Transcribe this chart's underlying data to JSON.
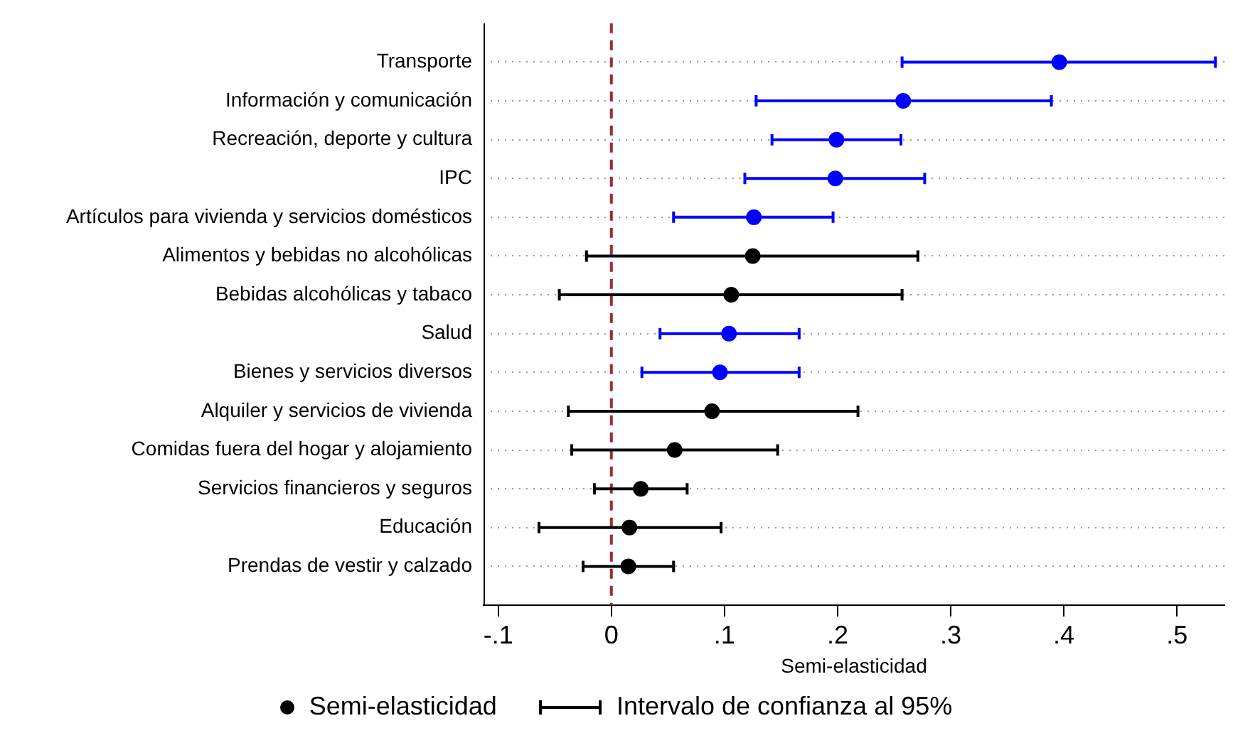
{
  "chart_data": {
    "type": "scatter",
    "orientation": "horizontal",
    "xlabel": "Semi-elasticidad",
    "categories": [
      "Transporte",
      "Información y comunicación",
      "Recreación, deporte y cultura",
      "IPC",
      "Artículos para vivienda y servicios domésticos",
      "Alimentos y bebidas no alcohólicas",
      "Bebidas alcohólicas y tabaco",
      "Salud",
      "Bienes y servicios diversos",
      "Alquiler y servicios de vivienda",
      "Comidas fuera del hogar y alojamiento",
      "Servicios financieros y seguros",
      "Educación",
      "Prendas de vestir y calzado"
    ],
    "series": [
      {
        "name": "Semi-elasticidad",
        "color": "#000000",
        "colors": [
          "#0000ff",
          "#0000ff",
          "#0000ff",
          "#0000ff",
          "#0000ff",
          "#000000",
          "#000000",
          "#0000ff",
          "#0000ff",
          "#000000",
          "#000000",
          "#000000",
          "#000000",
          "#000000"
        ],
        "values": [
          0.396,
          0.258,
          0.199,
          0.198,
          0.126,
          0.125,
          0.106,
          0.104,
          0.096,
          0.089,
          0.056,
          0.026,
          0.016,
          0.015
        ],
        "errors": [
          [
            0.257,
            0.534
          ],
          [
            0.128,
            0.389
          ],
          [
            0.142,
            0.256
          ],
          [
            0.118,
            0.277
          ],
          [
            0.055,
            0.196
          ],
          [
            -0.022,
            0.271
          ],
          [
            -0.046,
            0.257
          ],
          [
            0.043,
            0.166
          ],
          [
            0.027,
            0.166
          ],
          [
            -0.038,
            0.218
          ],
          [
            -0.035,
            0.147
          ],
          [
            -0.015,
            0.067
          ],
          [
            -0.064,
            0.097
          ],
          [
            -0.025,
            0.055
          ]
        ]
      }
    ],
    "xlim": [
      -0.113,
      0.542
    ],
    "xticks": [
      {
        "value": -0.1,
        "label": "-.1"
      },
      {
        "value": 0,
        "label": "0"
      },
      {
        "value": 0.1,
        "label": ".1"
      },
      {
        "value": 0.2,
        "label": ".2"
      },
      {
        "value": 0.3,
        "label": ".3"
      },
      {
        "value": 0.4,
        "label": ".4"
      },
      {
        "value": 0.5,
        "label": ".5"
      }
    ],
    "ref_lines": [
      {
        "axis": "x",
        "value": 0,
        "color": "#9b2d30",
        "line_style": "dashed"
      }
    ],
    "annotations": [
      "Intervalo de confianza al 95%"
    ],
    "grid": "y",
    "legend": "bottom",
    "marker": "circle"
  }
}
